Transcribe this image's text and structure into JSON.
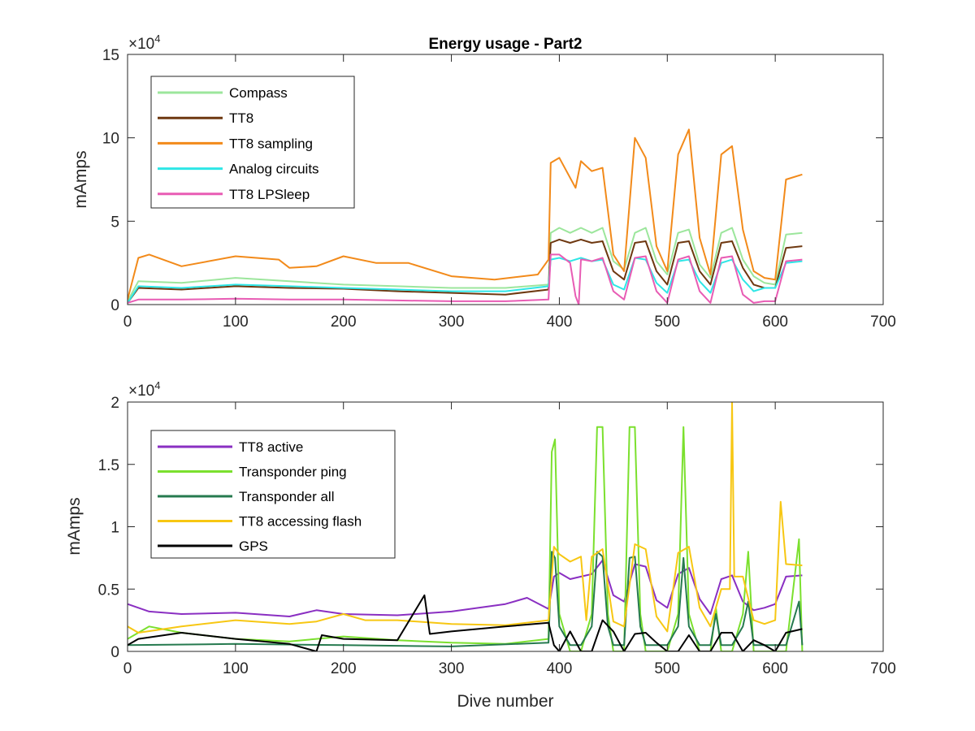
{
  "chart_data": [
    {
      "type": "line",
      "title": "Energy usage - Part2",
      "xlabel": "",
      "ylabel": "mAmps",
      "xlim": [
        0,
        700
      ],
      "ylim": [
        0,
        150000
      ],
      "y_exponent": "×10",
      "y_exponent_power": "4",
      "xticks": [
        0,
        100,
        200,
        300,
        400,
        500,
        600,
        700
      ],
      "yticks": [
        0,
        50000,
        100000,
        150000
      ],
      "ytick_labels": [
        "0",
        "5",
        "10",
        "15"
      ],
      "legend": "top-left",
      "grid": false,
      "series": [
        {
          "name": "Compass",
          "color": "#9ce69c",
          "x": [
            0,
            10,
            50,
            100,
            150,
            200,
            250,
            300,
            350,
            390,
            392,
            400,
            410,
            420,
            430,
            440,
            450,
            460,
            470,
            480,
            490,
            500,
            510,
            520,
            530,
            540,
            550,
            560,
            570,
            580,
            590,
            600,
            610,
            625
          ],
          "y": [
            2000,
            14000,
            13000,
            16000,
            14000,
            12000,
            11000,
            10000,
            10000,
            12000,
            43000,
            46000,
            43000,
            46000,
            43000,
            46000,
            26000,
            21000,
            43000,
            46000,
            26000,
            18000,
            43000,
            45000,
            24000,
            16000,
            43000,
            46000,
            27000,
            17000,
            13000,
            12000,
            42000,
            43000
          ]
        },
        {
          "name": "TT8",
          "color": "#6e3810",
          "x": [
            0,
            10,
            50,
            100,
            150,
            200,
            250,
            300,
            350,
            390,
            392,
            400,
            410,
            420,
            430,
            440,
            450,
            460,
            470,
            480,
            490,
            500,
            510,
            520,
            530,
            540,
            550,
            560,
            570,
            580,
            590,
            600,
            610,
            625
          ],
          "y": [
            1000,
            10000,
            9000,
            11000,
            10000,
            9500,
            8000,
            7000,
            6000,
            9000,
            37000,
            39000,
            37000,
            39000,
            37000,
            38000,
            20000,
            15000,
            37000,
            38000,
            20000,
            12000,
            37000,
            38000,
            20000,
            12000,
            37000,
            38000,
            22000,
            12000,
            10000,
            10000,
            34000,
            35000
          ]
        },
        {
          "name": "TT8 sampling",
          "color": "#f28a1a",
          "x": [
            0,
            10,
            20,
            50,
            100,
            140,
            150,
            175,
            200,
            230,
            260,
            300,
            340,
            380,
            390,
            392,
            400,
            415,
            420,
            430,
            440,
            450,
            460,
            470,
            480,
            490,
            500,
            510,
            520,
            530,
            540,
            550,
            560,
            570,
            580,
            590,
            600,
            610,
            625
          ],
          "y": [
            3000,
            28000,
            30000,
            23000,
            29000,
            27000,
            22000,
            23000,
            29000,
            25000,
            25000,
            17000,
            15000,
            18000,
            27000,
            85000,
            88000,
            70000,
            86000,
            80000,
            82000,
            30000,
            20000,
            100000,
            88000,
            35000,
            20000,
            90000,
            105000,
            40000,
            18000,
            90000,
            95000,
            45000,
            20000,
            16000,
            15000,
            75000,
            78000
          ]
        },
        {
          "name": "Analog circuits",
          "color": "#2ee6e6",
          "x": [
            0,
            10,
            50,
            100,
            150,
            200,
            250,
            300,
            350,
            390,
            392,
            400,
            410,
            420,
            430,
            440,
            450,
            460,
            470,
            480,
            490,
            500,
            510,
            520,
            530,
            540,
            550,
            560,
            570,
            580,
            590,
            600,
            610,
            625
          ],
          "y": [
            1000,
            11000,
            10000,
            12000,
            11000,
            10000,
            9000,
            8000,
            8000,
            11000,
            27000,
            28000,
            26000,
            28000,
            26000,
            27000,
            12000,
            9000,
            28000,
            27000,
            13000,
            7000,
            26000,
            27000,
            14000,
            7000,
            25000,
            27000,
            15000,
            8000,
            10000,
            10000,
            25000,
            26000
          ]
        },
        {
          "name": "TT8 LPSleep",
          "color": "#e85cb4",
          "x": [
            0,
            10,
            50,
            100,
            150,
            200,
            250,
            300,
            350,
            390,
            392,
            400,
            410,
            415,
            418,
            420,
            422,
            430,
            440,
            450,
            460,
            470,
            480,
            490,
            500,
            510,
            520,
            530,
            540,
            550,
            560,
            570,
            580,
            590,
            600,
            610,
            625
          ],
          "y": [
            1000,
            3000,
            3000,
            3500,
            3000,
            3000,
            2500,
            2000,
            2000,
            3000,
            30000,
            30000,
            25000,
            5000,
            0,
            27000,
            27000,
            26000,
            28000,
            8000,
            3000,
            28000,
            29000,
            8000,
            1000,
            27000,
            29000,
            8000,
            1000,
            28000,
            29000,
            6000,
            1000,
            2000,
            2000,
            26000,
            27000
          ]
        }
      ]
    },
    {
      "type": "line",
      "title": "",
      "xlabel": "Dive number",
      "ylabel": "mAmps",
      "xlim": [
        0,
        700
      ],
      "ylim": [
        0,
        20000
      ],
      "y_exponent": "×10",
      "y_exponent_power": "4",
      "xticks": [
        0,
        100,
        200,
        300,
        400,
        500,
        600,
        700
      ],
      "yticks": [
        0,
        5000,
        10000,
        15000,
        20000
      ],
      "ytick_labels": [
        "0",
        "0.5",
        "1",
        "1.5",
        "2"
      ],
      "legend": "top-left",
      "grid": false,
      "series": [
        {
          "name": "TT8 active",
          "color": "#8a2fc2",
          "x": [
            0,
            20,
            50,
            100,
            150,
            175,
            200,
            250,
            300,
            350,
            370,
            390,
            395,
            400,
            410,
            420,
            430,
            440,
            450,
            460,
            470,
            480,
            490,
            500,
            510,
            520,
            530,
            540,
            550,
            560,
            570,
            580,
            590,
            600,
            610,
            625
          ],
          "y": [
            3800,
            3200,
            3000,
            3100,
            2800,
            3300,
            3000,
            2900,
            3200,
            3800,
            4300,
            3400,
            6000,
            6300,
            5800,
            6000,
            6200,
            7300,
            4500,
            4000,
            7000,
            6800,
            4100,
            3500,
            6200,
            6700,
            4200,
            3000,
            5800,
            6100,
            4000,
            3300,
            3500,
            3800,
            6000,
            6100
          ]
        },
        {
          "name": "Transponder ping",
          "color": "#7be02e",
          "x": [
            0,
            20,
            50,
            100,
            150,
            200,
            250,
            300,
            350,
            390,
            393,
            396,
            400,
            410,
            420,
            430,
            435,
            440,
            445,
            450,
            460,
            465,
            470,
            475,
            480,
            490,
            500,
            510,
            515,
            520,
            530,
            540,
            545,
            550,
            560,
            570,
            575,
            580,
            590,
            600,
            610,
            622,
            625
          ],
          "y": [
            1000,
            2000,
            1500,
            1000,
            800,
            1200,
            900,
            700,
            600,
            1000,
            16000,
            17000,
            3000,
            0,
            0,
            3000,
            18000,
            18000,
            3000,
            0,
            0,
            18000,
            18000,
            3000,
            0,
            0,
            0,
            3000,
            18000,
            3000,
            0,
            0,
            3500,
            0,
            0,
            3000,
            8000,
            0,
            0,
            0,
            0,
            9000,
            0
          ]
        },
        {
          "name": "Transponder all",
          "color": "#267a4f",
          "x": [
            0,
            100,
            200,
            300,
            390,
            393,
            396,
            400,
            410,
            420,
            430,
            435,
            440,
            445,
            450,
            460,
            465,
            470,
            475,
            480,
            490,
            500,
            510,
            515,
            520,
            530,
            540,
            545,
            550,
            560,
            570,
            575,
            580,
            590,
            600,
            610,
            622,
            625
          ],
          "y": [
            500,
            600,
            500,
            400,
            700,
            8000,
            7500,
            2000,
            500,
            500,
            2000,
            8000,
            7600,
            2000,
            500,
            500,
            7500,
            7600,
            2000,
            500,
            500,
            500,
            2000,
            7500,
            2000,
            500,
            500,
            3000,
            500,
            500,
            2000,
            4000,
            500,
            500,
            500,
            500,
            4000,
            500
          ]
        },
        {
          "name": "TT8 accessing flash",
          "color": "#f7c713",
          "x": [
            0,
            10,
            50,
            100,
            150,
            175,
            200,
            220,
            250,
            300,
            350,
            390,
            395,
            400,
            410,
            420,
            425,
            430,
            440,
            450,
            460,
            470,
            480,
            490,
            500,
            510,
            520,
            530,
            540,
            550,
            558,
            560,
            562,
            570,
            580,
            590,
            600,
            605,
            610,
            625
          ],
          "y": [
            2000,
            1500,
            2000,
            2500,
            2200,
            2400,
            3000,
            2500,
            2500,
            2200,
            2100,
            2500,
            8400,
            7800,
            7200,
            7600,
            2500,
            7600,
            8200,
            2400,
            2000,
            8600,
            8200,
            2800,
            1600,
            7900,
            8400,
            3500,
            2000,
            5000,
            5000,
            20000,
            6000,
            6000,
            2500,
            2200,
            2500,
            12000,
            7000,
            6900
          ]
        },
        {
          "name": "GPS",
          "color": "#000000",
          "x": [
            0,
            10,
            50,
            100,
            150,
            175,
            180,
            200,
            250,
            275,
            280,
            300,
            350,
            390,
            395,
            400,
            410,
            420,
            430,
            440,
            450,
            460,
            470,
            480,
            490,
            500,
            510,
            520,
            530,
            540,
            550,
            560,
            570,
            580,
            590,
            600,
            610,
            625
          ],
          "y": [
            500,
            1000,
            1500,
            1000,
            600,
            0,
            1300,
            1000,
            900,
            4500,
            1400,
            1600,
            2000,
            2300,
            500,
            0,
            1600,
            0,
            0,
            2500,
            1600,
            0,
            1400,
            1500,
            700,
            0,
            0,
            1300,
            0,
            0,
            1500,
            1500,
            0,
            900,
            500,
            0,
            1500,
            1800
          ]
        }
      ]
    }
  ]
}
